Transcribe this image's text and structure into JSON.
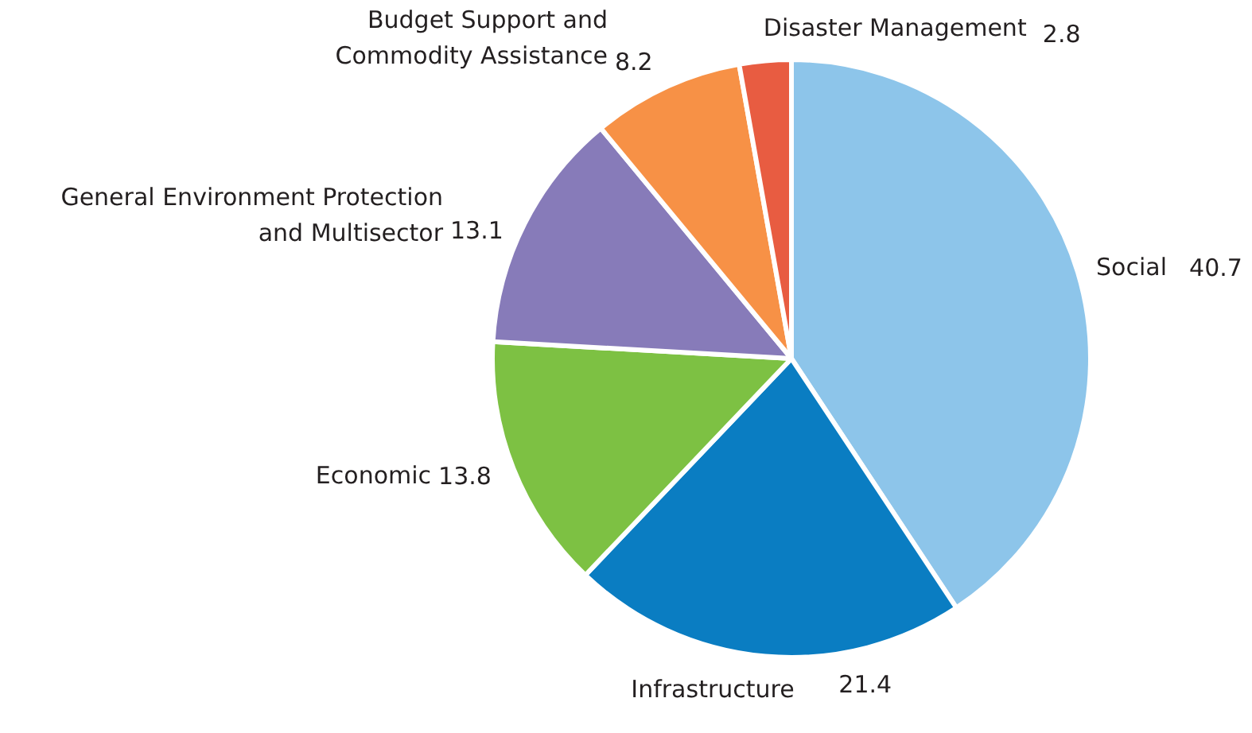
{
  "chart_data": {
    "type": "pie",
    "categories": [
      "Social",
      "Infrastructure",
      "Economic",
      "General Environment Protection\nand Multisector",
      "Budget Support and\nCommodity Assistance",
      "Disaster Management"
    ],
    "values": [
      40.7,
      21.4,
      13.8,
      13.1,
      8.2,
      2.8
    ],
    "colors": [
      "#8dc5ea",
      "#0a7dc2",
      "#7dc143",
      "#877bb9",
      "#f79146",
      "#e85c41"
    ],
    "data_labels": true
  }
}
